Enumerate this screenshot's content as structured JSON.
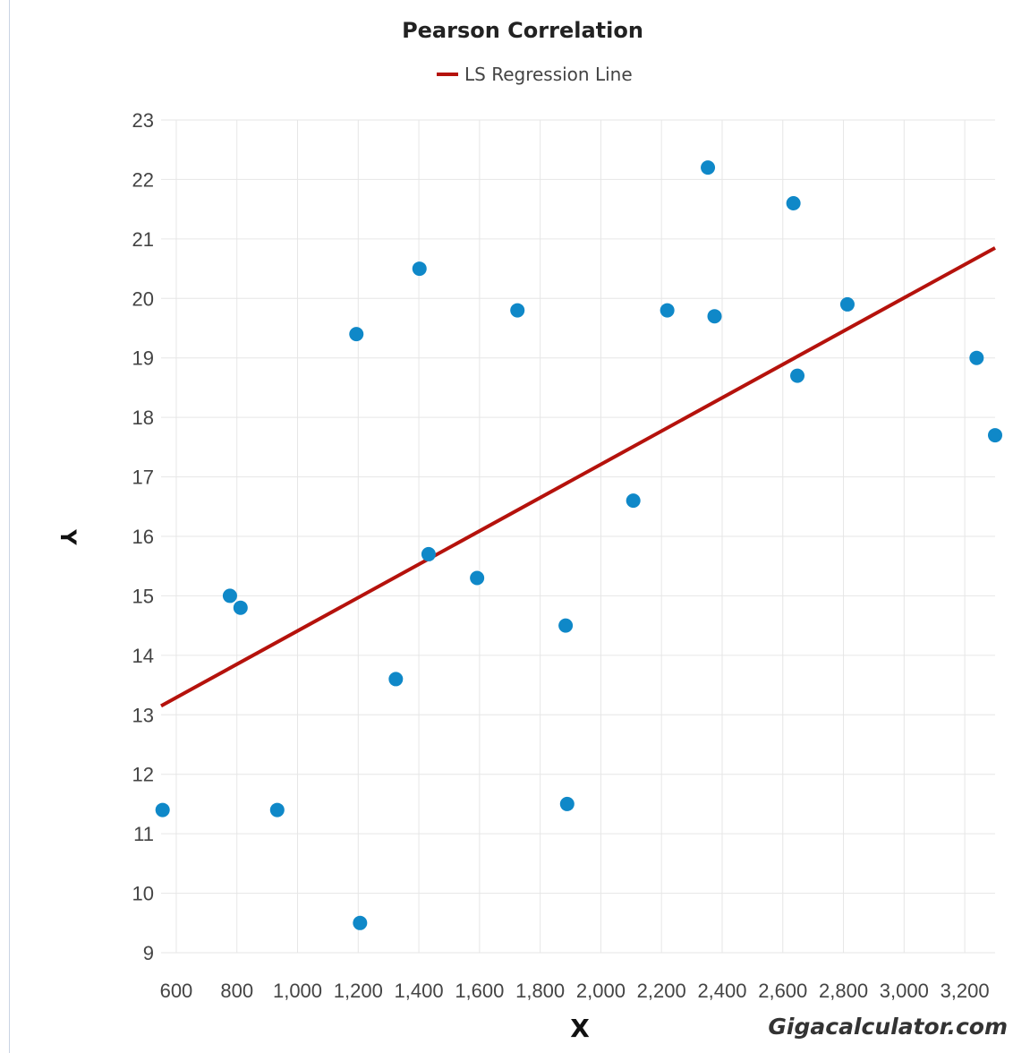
{
  "chart_data": {
    "type": "scatter",
    "title": "Pearson Correlation",
    "xlabel": "X",
    "ylabel": "Y",
    "xlim": [
      550,
      3300
    ],
    "ylim": [
      9,
      23
    ],
    "xticks": [
      "600",
      "800",
      "1,000",
      "1,200",
      "1,400",
      "1,600",
      "1,800",
      "2,000",
      "2,200",
      "2,400",
      "2,600",
      "2,800",
      "3,000",
      "3,200"
    ],
    "yticks": [
      "9",
      "10",
      "11",
      "12",
      "13",
      "14",
      "15",
      "16",
      "17",
      "18",
      "19",
      "20",
      "21",
      "22",
      "23"
    ],
    "grid": true,
    "legend_position": "top-center",
    "points": [
      {
        "x": 555,
        "y": 11.4
      },
      {
        "x": 777,
        "y": 15.0
      },
      {
        "x": 812,
        "y": 14.8
      },
      {
        "x": 933,
        "y": 11.4
      },
      {
        "x": 1194,
        "y": 19.4
      },
      {
        "x": 1206,
        "y": 9.5
      },
      {
        "x": 1324,
        "y": 13.6
      },
      {
        "x": 1402,
        "y": 20.5
      },
      {
        "x": 1432,
        "y": 15.7
      },
      {
        "x": 1592,
        "y": 15.3
      },
      {
        "x": 1725,
        "y": 19.8
      },
      {
        "x": 1884,
        "y": 14.5
      },
      {
        "x": 1889,
        "y": 11.5
      },
      {
        "x": 2107,
        "y": 16.6
      },
      {
        "x": 2219,
        "y": 19.8
      },
      {
        "x": 2353,
        "y": 22.2
      },
      {
        "x": 2375,
        "y": 19.7
      },
      {
        "x": 2635,
        "y": 21.6
      },
      {
        "x": 2648,
        "y": 18.7
      },
      {
        "x": 2813,
        "y": 19.9
      },
      {
        "x": 3239,
        "y": 19.0
      },
      {
        "x": 3318,
        "y": 17.7
      }
    ],
    "series": [
      {
        "name": "LS Regression Line",
        "x": [
          550,
          3300
        ],
        "y": [
          13.15,
          20.85
        ],
        "color": "#b5120c"
      }
    ],
    "point_color": "#0f88c8",
    "watermark": "Gigacalculator.com"
  }
}
